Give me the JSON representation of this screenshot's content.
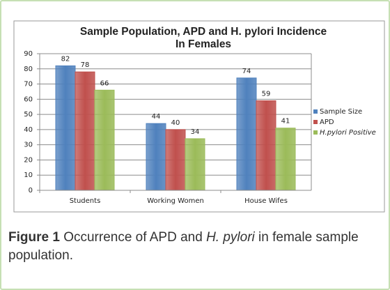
{
  "chart_data": {
    "type": "bar",
    "title": [
      "Sample Population, APD and H. pylori Incidence",
      "In Females"
    ],
    "categories": [
      "Students",
      "Working Women",
      "House Wifes"
    ],
    "series": [
      {
        "name": "Sample Size",
        "color": "#4f81bd",
        "values": [
          82,
          44,
          74
        ]
      },
      {
        "name": "APD",
        "color": "#c0504d",
        "values": [
          78,
          40,
          59
        ]
      },
      {
        "name": "H.pylori Positive",
        "color": "#9bbb59",
        "values": [
          66,
          34,
          41
        ]
      }
    ],
    "ylim": [
      0,
      90
    ],
    "yticks": [
      0,
      10,
      20,
      30,
      40,
      50,
      60,
      70,
      80,
      90
    ],
    "grid": true,
    "legend": "right"
  },
  "caption": {
    "label": "Figure 1",
    "text1": "Occurrence of APD and",
    "italic": "H. pylori",
    "text2": "in female sample population."
  }
}
